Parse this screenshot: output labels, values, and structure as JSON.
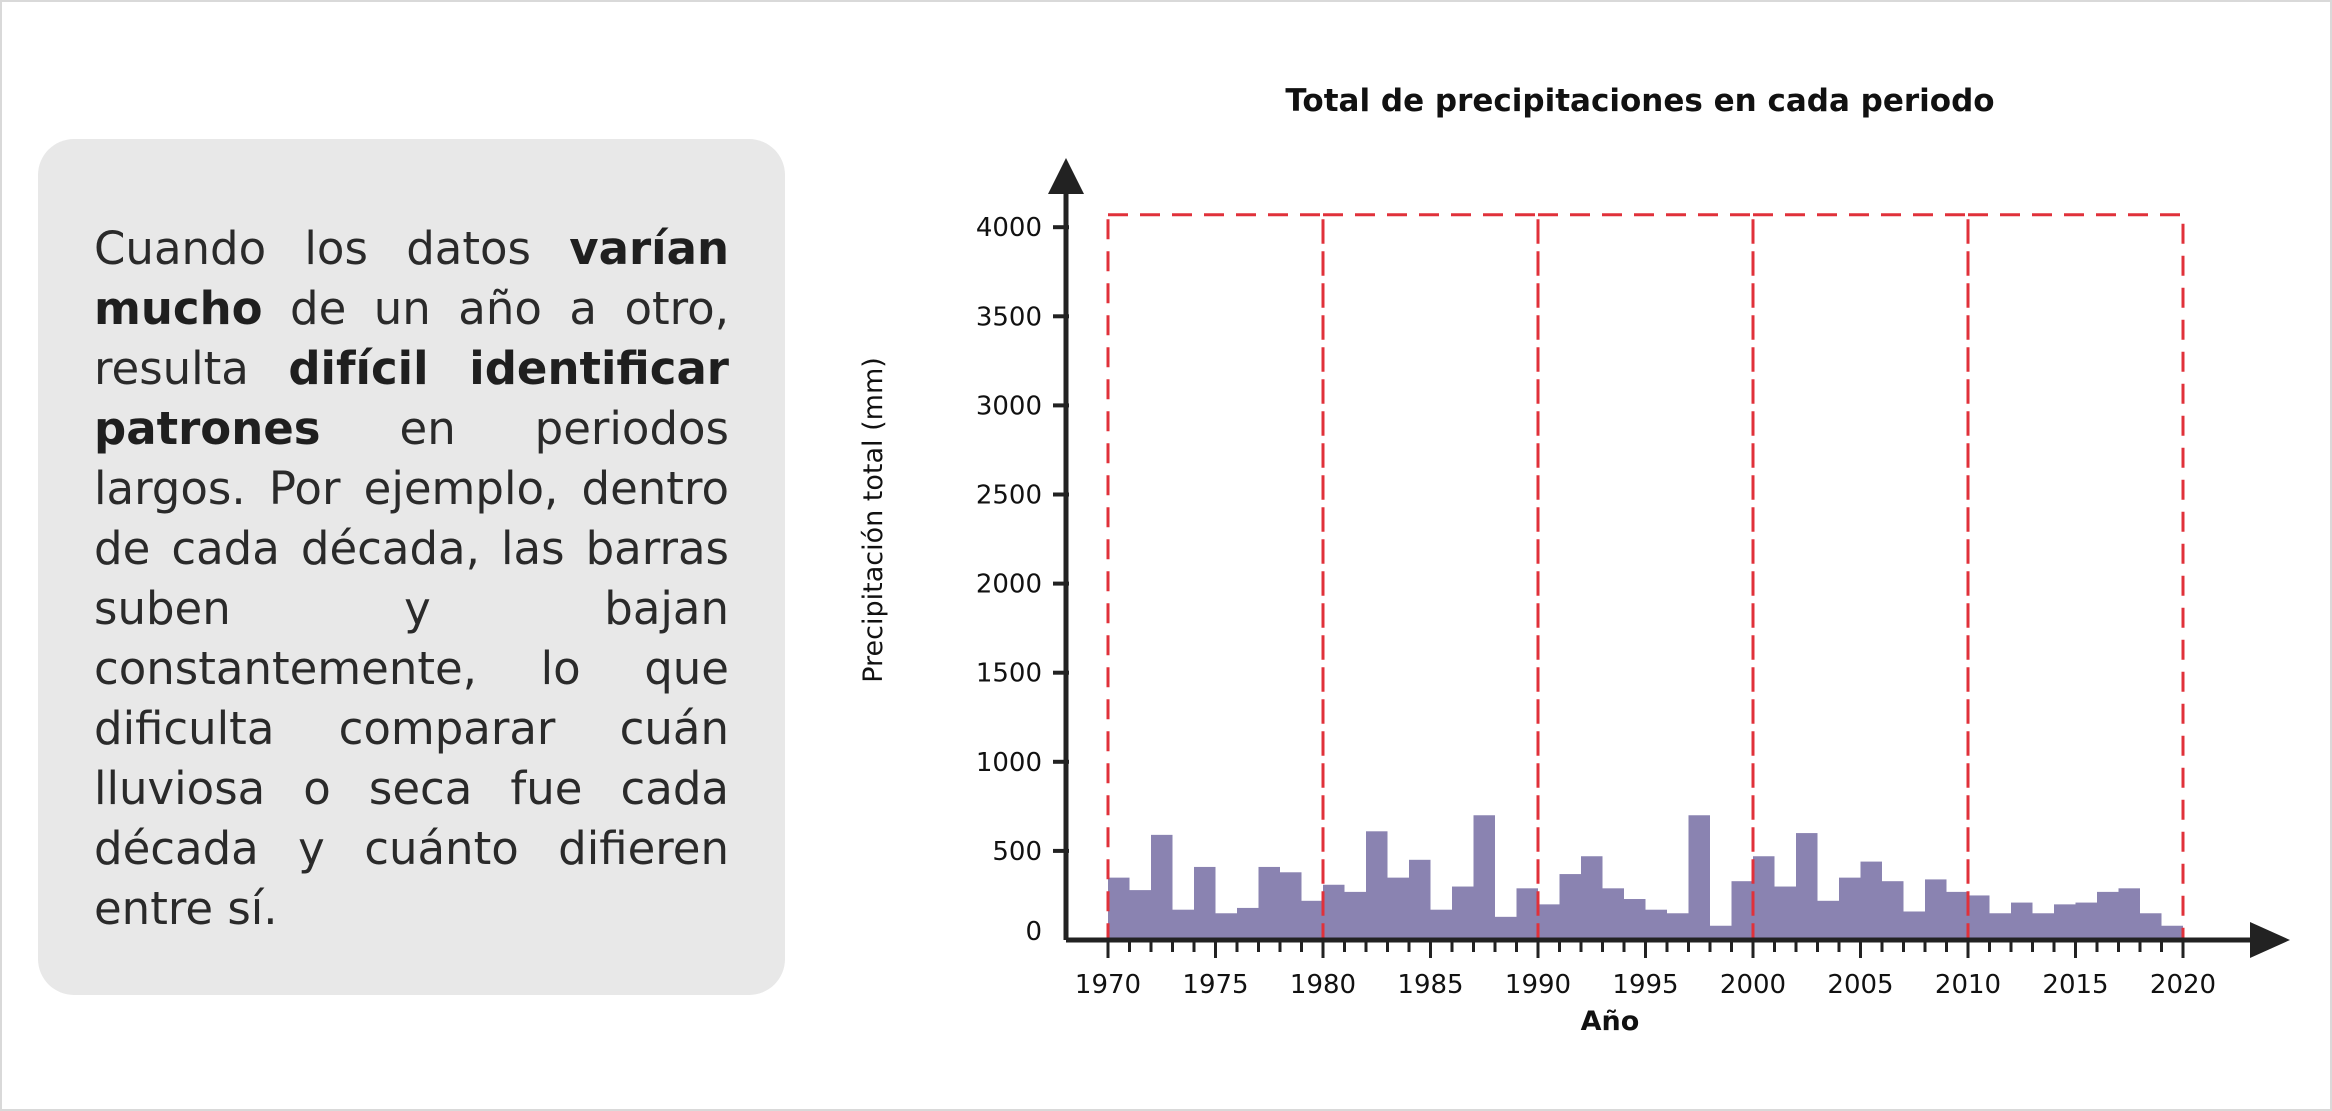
{
  "panel": {
    "t1": "Cuando los datos ",
    "b1": "varían mucho",
    "t2": " de un año a otro, resulta ",
    "b2": "difícil identificar patrones",
    "t3": " en periodos largos. Por ejemplo, dentro de cada década, las barras suben y bajan constantemente, lo que dificulta comparar cuán lluviosa o seca fue cada década y cuánto difieren entre sí."
  },
  "chart_data": {
    "type": "bar",
    "title": "Total de precipitaciones en cada periodo",
    "xlabel": "Año",
    "ylabel": "Precipitación total (mm)",
    "ylim": [
      0,
      4000
    ],
    "xlim": [
      1970,
      2020
    ],
    "yticks": [
      0,
      500,
      1000,
      1500,
      2000,
      2500,
      3000,
      3500,
      4000
    ],
    "xticks": [
      1970,
      1975,
      1980,
      1985,
      1990,
      1995,
      2000,
      2005,
      2010,
      2015,
      2020
    ],
    "x": [
      1970,
      1971,
      1972,
      1973,
      1974,
      1975,
      1976,
      1977,
      1978,
      1979,
      1980,
      1981,
      1982,
      1983,
      1984,
      1985,
      1986,
      1987,
      1988,
      1989,
      1990,
      1991,
      1992,
      1993,
      1994,
      1995,
      1996,
      1997,
      1998,
      1999,
      2000,
      2001,
      2002,
      2003,
      2004,
      2005,
      2006,
      2007,
      2008,
      2009,
      2010,
      2011,
      2012,
      2013,
      2014,
      2015,
      2016,
      2017,
      2018,
      2019
    ],
    "values": [
      350,
      280,
      590,
      170,
      410,
      150,
      180,
      410,
      380,
      220,
      310,
      270,
      610,
      350,
      450,
      170,
      300,
      700,
      130,
      290,
      200,
      370,
      470,
      290,
      230,
      170,
      150,
      700,
      80,
      330,
      470,
      300,
      600,
      220,
      350,
      440,
      330,
      160,
      340,
      270,
      250,
      150,
      210,
      150,
      200,
      210,
      270,
      290,
      150,
      80
    ],
    "decades": [
      [
        1970,
        1980
      ],
      [
        1980,
        1990
      ],
      [
        1990,
        2000
      ],
      [
        2000,
        2010
      ],
      [
        2010,
        2020
      ]
    ],
    "decade_top": 4070,
    "colors": {
      "bar": "#8a83b1",
      "decade_box": "#e0313a",
      "axis": "#222222"
    },
    "grid": false
  }
}
